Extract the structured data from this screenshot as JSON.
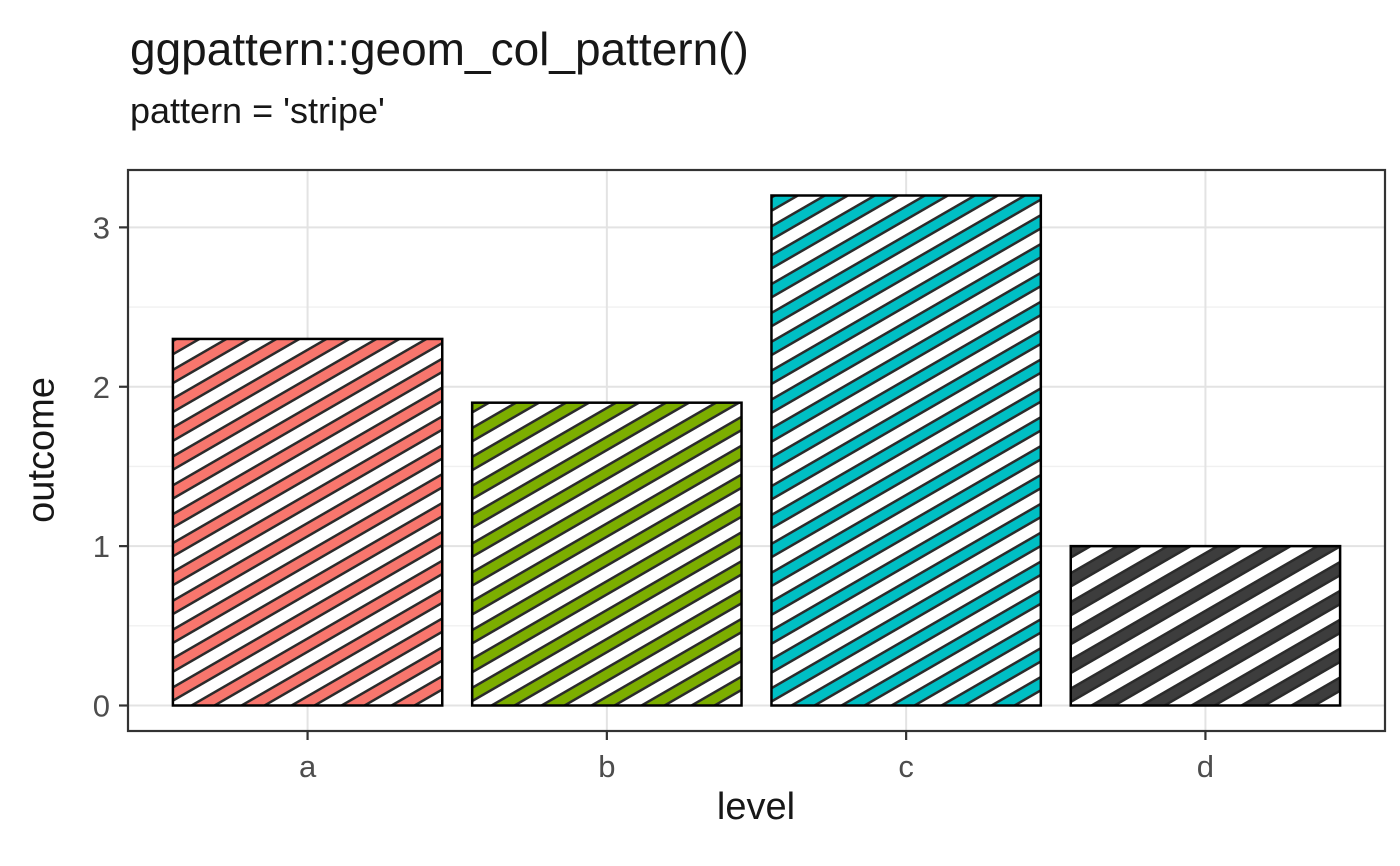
{
  "chart_data": {
    "type": "bar",
    "title": "ggpattern::geom_col_pattern()",
    "subtitle": "pattern = 'stripe'",
    "xlabel": "level",
    "ylabel": "outcome",
    "categories": [
      "a",
      "b",
      "c",
      "d"
    ],
    "values": [
      2.3,
      1.9,
      3.2,
      1.0
    ],
    "ylim": [
      -0.16,
      3.36
    ],
    "yticks": [
      0,
      1,
      2,
      3
    ],
    "yticks_minor": [
      0.5,
      1.5,
      2.5
    ],
    "grid": true,
    "legend_position": "none",
    "pattern": "stripe",
    "stripe_angle_deg": 30,
    "bar_fill": "#FFFFFF",
    "bar_border_color": "#000000",
    "stripe_colors": [
      "#F8766D",
      "#7CAE00",
      "#00BFC4",
      "#3D3D3D"
    ],
    "stripe_edge_color": "#2B2B2B",
    "colors": {
      "background": "#FFFFFF",
      "grid_major": "#E3E3E3",
      "grid_minor": "#F0F0F0",
      "panel_border": "#333333",
      "tick_color": "#333333",
      "tick_label_color": "#4D4D4D",
      "title_color": "#171717"
    }
  }
}
